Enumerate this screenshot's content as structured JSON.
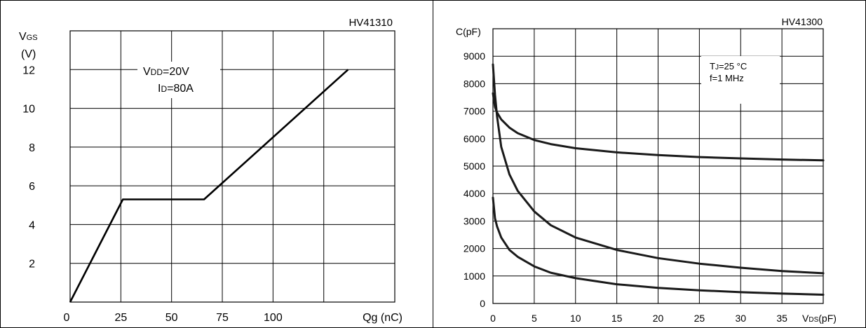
{
  "chart_data": [
    {
      "type": "line",
      "code": "HV41310",
      "ylabel": "V",
      "ylabel_sub": "GS",
      "ylabel_unit": "(V)",
      "xlabel": "Qg (nC)",
      "xlim": [
        0,
        160
      ],
      "ylim": [
        0,
        14
      ],
      "x_ticks": [
        "0",
        "25",
        "50",
        "75",
        "100"
      ],
      "x_tick_values": [
        0,
        25,
        50,
        75,
        100
      ],
      "y_ticks": [
        "2",
        "4",
        "6",
        "8",
        "10",
        "12"
      ],
      "y_tick_values": [
        2,
        4,
        6,
        8,
        10,
        12
      ],
      "annotation": [
        {
          "main": "V",
          "sub": "DD",
          "rest": "=20V"
        },
        {
          "main": "I",
          "sub": "D",
          "rest": "=80A"
        }
      ],
      "grid": true,
      "series": [
        {
          "x": [
            0,
            26,
            66,
            137
          ],
          "y": [
            0,
            5.3,
            5.3,
            12
          ]
        }
      ]
    },
    {
      "type": "line",
      "code": "HV41300",
      "ylabel": "C(pF)",
      "xlabel_main": "V",
      "xlabel_sub": "DS",
      "xlabel_unit": "(pF)",
      "xlim": [
        0,
        40
      ],
      "ylim": [
        0,
        10000
      ],
      "x_ticks": [
        "0",
        "5",
        "10",
        "15",
        "20",
        "25",
        "30",
        "35"
      ],
      "x_tick_values": [
        0,
        5,
        10,
        15,
        20,
        25,
        30,
        35
      ],
      "y_ticks": [
        "0",
        "1000",
        "2000",
        "3000",
        "4000",
        "5000",
        "6000",
        "7000",
        "8000",
        "9000"
      ],
      "y_tick_values": [
        0,
        1000,
        2000,
        3000,
        4000,
        5000,
        6000,
        7000,
        8000,
        9000
      ],
      "annotation": [
        {
          "main": "T",
          "sub": "J",
          "rest": "=25 °C"
        },
        {
          "main": "f=1 MHz",
          "sub": "",
          "rest": ""
        }
      ],
      "grid": true,
      "series": [
        {
          "x": [
            0,
            0.25,
            0.5,
            1,
            2,
            3,
            5,
            7,
            10,
            15,
            20,
            25,
            30,
            35,
            40
          ],
          "y": [
            7650,
            7150,
            6950,
            6700,
            6400,
            6200,
            5950,
            5800,
            5650,
            5500,
            5400,
            5330,
            5280,
            5240,
            5210
          ]
        },
        {
          "x": [
            0,
            0.25,
            0.5,
            1,
            2,
            3,
            5,
            7,
            10,
            15,
            20,
            25,
            30,
            35,
            40
          ],
          "y": [
            8700,
            7600,
            6800,
            5700,
            4700,
            4100,
            3350,
            2850,
            2400,
            1950,
            1650,
            1450,
            1300,
            1180,
            1100
          ]
        },
        {
          "x": [
            0,
            0.25,
            0.5,
            1,
            2,
            3,
            5,
            7,
            10,
            15,
            20,
            25,
            30,
            35,
            40
          ],
          "y": [
            3850,
            3100,
            2800,
            2400,
            1950,
            1700,
            1350,
            1120,
            920,
            700,
            570,
            480,
            410,
            360,
            320
          ]
        }
      ]
    }
  ]
}
